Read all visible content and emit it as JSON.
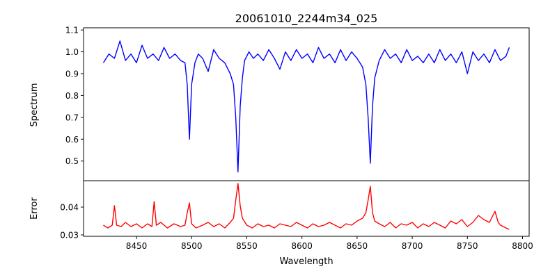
{
  "chart_data": [
    {
      "type": "line",
      "title": "20061010_2244m34_025",
      "xlabel": "",
      "ylabel": "Spectrum",
      "xlim": [
        8402,
        8806
      ],
      "ylim": [
        0.41,
        1.11
      ],
      "yticks": [
        0.5,
        0.6,
        0.7,
        0.8,
        0.9,
        1.0,
        1.1
      ],
      "ytick_labels": [
        "0.5",
        "0.6",
        "0.7",
        "0.8",
        "0.9",
        "1.0",
        "1.1"
      ],
      "grid": false,
      "series": [
        {
          "color": "#0000ff",
          "x": [
            8420,
            8425,
            8430,
            8435,
            8440,
            8445,
            8450,
            8455,
            8460,
            8465,
            8470,
            8475,
            8480,
            8485,
            8490,
            8494,
            8496,
            8498,
            8500,
            8503,
            8506,
            8510,
            8515,
            8520,
            8525,
            8530,
            8535,
            8538,
            8540,
            8542,
            8544,
            8546,
            8548,
            8552,
            8556,
            8560,
            8565,
            8570,
            8575,
            8580,
            8585,
            8590,
            8595,
            8600,
            8605,
            8610,
            8615,
            8620,
            8625,
            8630,
            8635,
            8640,
            8645,
            8650,
            8655,
            8658,
            8660,
            8662,
            8664,
            8666,
            8670,
            8675,
            8680,
            8685,
            8690,
            8695,
            8700,
            8705,
            8710,
            8715,
            8720,
            8725,
            8730,
            8735,
            8740,
            8745,
            8750,
            8755,
            8760,
            8765,
            8770,
            8775,
            8780,
            8785,
            8788
          ],
          "y": [
            0.95,
            0.99,
            0.97,
            1.05,
            0.96,
            0.99,
            0.95,
            1.03,
            0.97,
            0.99,
            0.96,
            1.02,
            0.97,
            0.99,
            0.96,
            0.95,
            0.85,
            0.6,
            0.85,
            0.95,
            0.99,
            0.97,
            0.91,
            1.01,
            0.97,
            0.95,
            0.9,
            0.85,
            0.7,
            0.45,
            0.75,
            0.88,
            0.96,
            1.0,
            0.97,
            0.99,
            0.96,
            1.01,
            0.97,
            0.92,
            1.0,
            0.96,
            1.01,
            0.97,
            0.99,
            0.95,
            1.02,
            0.97,
            0.99,
            0.95,
            1.01,
            0.96,
            1.0,
            0.97,
            0.93,
            0.85,
            0.7,
            0.49,
            0.75,
            0.88,
            0.96,
            1.01,
            0.97,
            0.99,
            0.95,
            1.01,
            0.96,
            0.98,
            0.95,
            0.99,
            0.95,
            1.01,
            0.96,
            0.99,
            0.95,
            1.0,
            0.9,
            1.0,
            0.96,
            0.99,
            0.95,
            1.01,
            0.96,
            0.98,
            1.02
          ]
        }
      ]
    },
    {
      "type": "line",
      "title": "",
      "xlabel": "Wavelength",
      "ylabel": "Error",
      "xlim": [
        8402,
        8806
      ],
      "ylim": [
        0.0295,
        0.0495
      ],
      "xticks": [
        8450,
        8500,
        8550,
        8600,
        8650,
        8700,
        8750,
        8800
      ],
      "xtick_labels": [
        "8450",
        "8500",
        "8550",
        "8600",
        "8650",
        "8700",
        "8750",
        "8800"
      ],
      "yticks": [
        0.03,
        0.04
      ],
      "ytick_labels": [
        "0.03",
        "0.04"
      ],
      "grid": false,
      "series": [
        {
          "color": "#ff0000",
          "x": [
            8420,
            8424,
            8428,
            8430,
            8432,
            8436,
            8440,
            8445,
            8450,
            8455,
            8460,
            8464,
            8466,
            8468,
            8472,
            8478,
            8484,
            8490,
            8494,
            8496,
            8498,
            8500,
            8504,
            8510,
            8515,
            8520,
            8525,
            8530,
            8535,
            8538,
            8540,
            8542,
            8544,
            8546,
            8550,
            8555,
            8560,
            8565,
            8570,
            8575,
            8580,
            8585,
            8590,
            8595,
            8600,
            8605,
            8610,
            8615,
            8620,
            8625,
            8630,
            8635,
            8640,
            8645,
            8650,
            8655,
            8658,
            8660,
            8662,
            8664,
            8666,
            8670,
            8675,
            8680,
            8685,
            8690,
            8695,
            8700,
            8705,
            8710,
            8715,
            8720,
            8725,
            8730,
            8735,
            8740,
            8745,
            8750,
            8755,
            8760,
            8765,
            8770,
            8775,
            8778,
            8780,
            8785,
            8788
          ],
          "y": [
            0.0335,
            0.0325,
            0.0335,
            0.0405,
            0.0335,
            0.033,
            0.0345,
            0.033,
            0.034,
            0.0325,
            0.034,
            0.033,
            0.042,
            0.0335,
            0.0345,
            0.0325,
            0.034,
            0.033,
            0.0335,
            0.038,
            0.0415,
            0.034,
            0.0325,
            0.0335,
            0.0345,
            0.033,
            0.034,
            0.0325,
            0.0345,
            0.036,
            0.0425,
            0.0485,
            0.0405,
            0.036,
            0.0335,
            0.0325,
            0.034,
            0.033,
            0.0335,
            0.0325,
            0.034,
            0.0335,
            0.033,
            0.0345,
            0.0335,
            0.0325,
            0.034,
            0.033,
            0.0335,
            0.0345,
            0.0335,
            0.0325,
            0.034,
            0.0335,
            0.035,
            0.036,
            0.038,
            0.0425,
            0.0475,
            0.038,
            0.035,
            0.034,
            0.033,
            0.0345,
            0.0325,
            0.034,
            0.0335,
            0.0345,
            0.0325,
            0.034,
            0.033,
            0.0345,
            0.0335,
            0.0325,
            0.035,
            0.034,
            0.0355,
            0.033,
            0.0345,
            0.037,
            0.0355,
            0.0345,
            0.0385,
            0.0345,
            0.0335,
            0.0325,
            0.032
          ]
        }
      ]
    }
  ]
}
